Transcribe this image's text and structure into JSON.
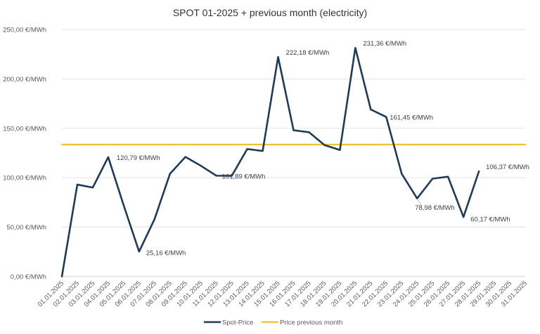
{
  "chart_data": {
    "type": "line",
    "title": "SPOT 01-2025 + previous month (electricity)",
    "xlabel": "",
    "ylabel": "",
    "ylim": [
      0,
      250
    ],
    "yticks": [
      0,
      50,
      100,
      150,
      200,
      250
    ],
    "ytick_labels": [
      "0,00 €/MWh",
      "50,00 €/MWh",
      "100,00 €/MWh",
      "150,00 €/MWh",
      "200,00 €/MWh",
      "250,00 €/MWh"
    ],
    "grid": true,
    "legend": "bottom",
    "categories": [
      "01.01.2025",
      "02.01.2025",
      "03.01.2025",
      "04.01.2025",
      "05.01.2025",
      "06.01.2025",
      "07.01.2025",
      "08.01.2025",
      "09.01.2025",
      "10.01.2025",
      "11.01.2025",
      "12.01.2025",
      "13.01.2025",
      "14.01.2025",
      "15.01.2025",
      "16.01.2025",
      "17.01.2025",
      "18.01.2025",
      "19.01.2025",
      "20.01.2025",
      "21.01.2025",
      "22.01.2025",
      "23.01.2025",
      "24.01.2025",
      "25.01.2025",
      "26.01.2025",
      "27.01.2025",
      "28.01.2025",
      "29.01.2025",
      "30.01.2025",
      "31.01.2025"
    ],
    "series": [
      {
        "name": "Spot-Price",
        "color": "#1f3b57",
        "values": [
          0,
          93,
          90,
          120.79,
          72,
          25.16,
          58,
          104,
          121,
          112,
          102,
          101.89,
          129,
          127,
          222.18,
          148,
          146,
          133,
          128,
          231.36,
          169,
          161.45,
          104,
          78.98,
          99,
          101,
          60.17,
          106.37,
          null,
          null,
          null
        ]
      },
      {
        "name": "Price previous month",
        "color": "#f2c12e",
        "values": [
          133.5,
          133.5,
          133.5,
          133.5,
          133.5,
          133.5,
          133.5,
          133.5,
          133.5,
          133.5,
          133.5,
          133.5,
          133.5,
          133.5,
          133.5,
          133.5,
          133.5,
          133.5,
          133.5,
          133.5,
          133.5,
          133.5,
          133.5,
          133.5,
          133.5,
          133.5,
          133.5,
          133.5,
          133.5,
          133.5,
          133.5
        ]
      }
    ],
    "annotations": [
      {
        "index": 3,
        "text": "120,79 €/MWh"
      },
      {
        "index": 5,
        "text": "25,16 €/MWh"
      },
      {
        "index": 11,
        "text": "101,89 €/MWh"
      },
      {
        "index": 14,
        "text": "222,18 €/MWh"
      },
      {
        "index": 19,
        "text": "231,36 €/MWh"
      },
      {
        "index": 21,
        "text": "161,45 €/MWh"
      },
      {
        "index": 23,
        "text": "78,98 €/MWh"
      },
      {
        "index": 26,
        "text": "60,17 €/MWh"
      },
      {
        "index": 27,
        "text": "106,37 €/MWh"
      }
    ]
  }
}
